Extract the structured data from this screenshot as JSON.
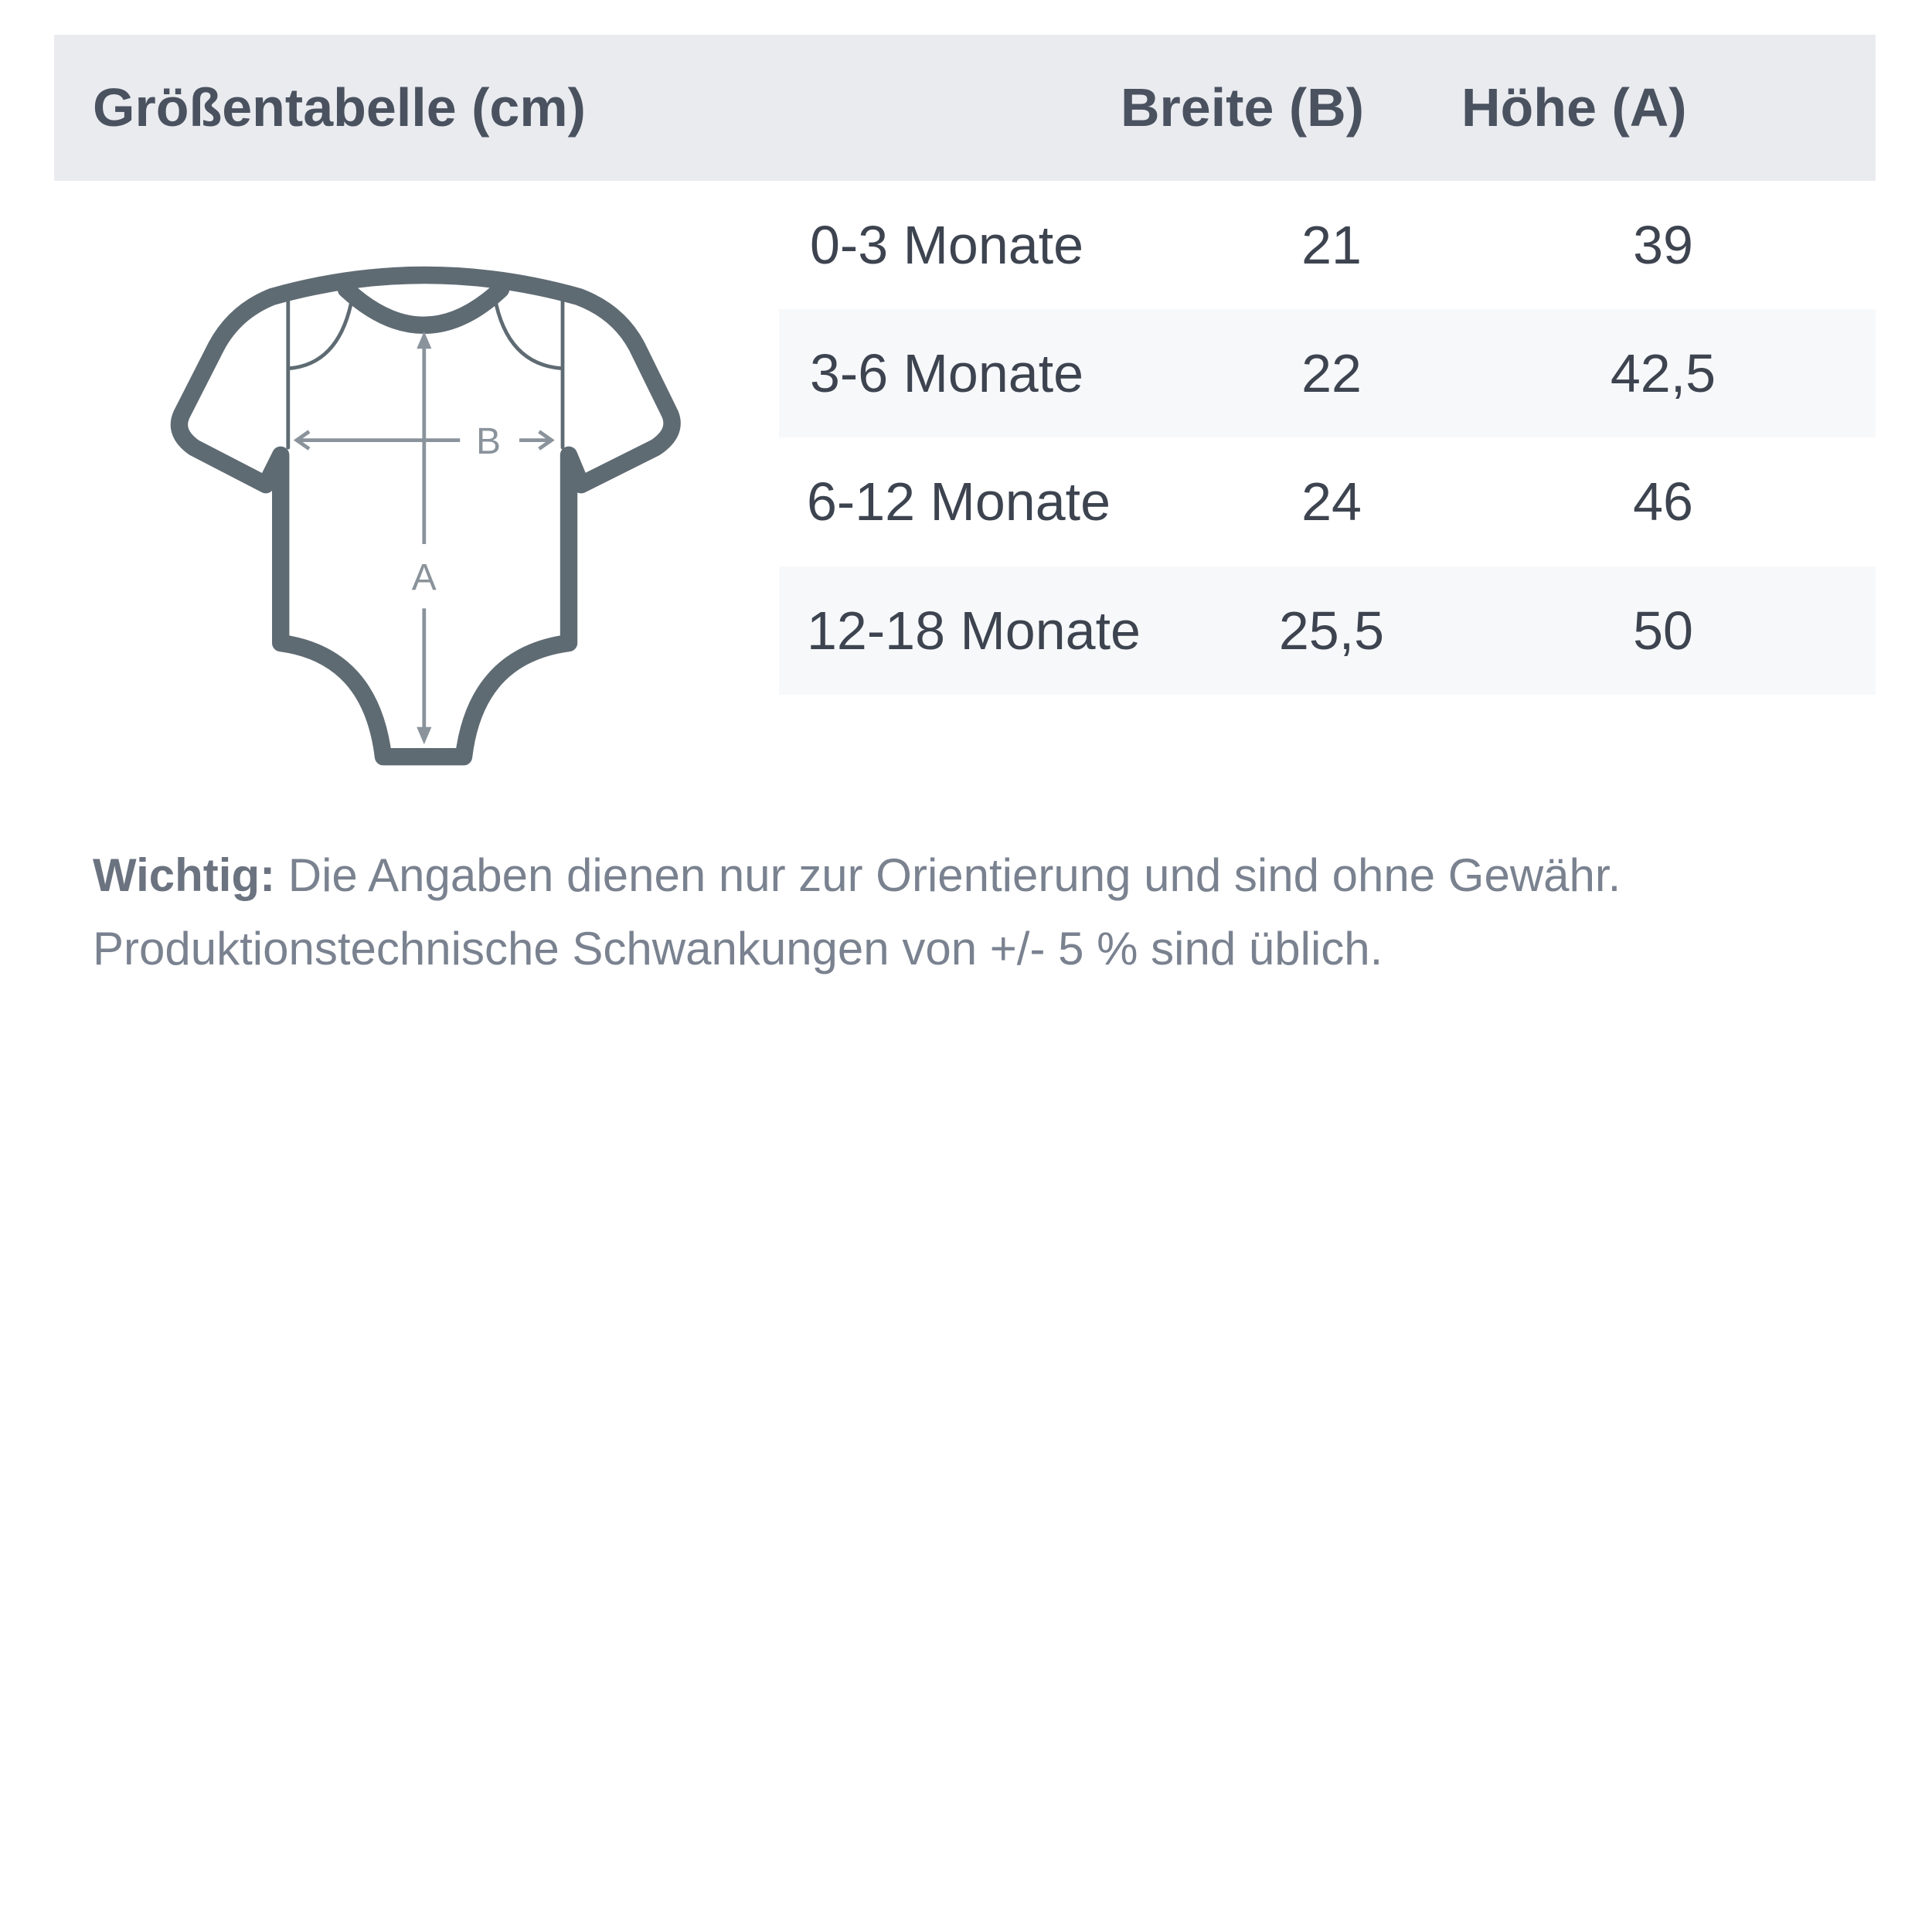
{
  "header": {
    "title": "Größentabelle (cm)",
    "col_width": "Breite (B)",
    "col_height": "Höhe (A)"
  },
  "rows": [
    {
      "size": "0-3 Monate",
      "width": "21",
      "height": "39"
    },
    {
      "size": "3-6 Monate",
      "width": "22",
      "height": "42,5"
    },
    {
      "size": "6-12 Monate",
      "width": "24",
      "height": "46"
    },
    {
      "size": "12-18 Monate",
      "width": "25,5",
      "height": "50"
    }
  ],
  "diagram": {
    "label_b": "B",
    "label_a": "A",
    "icon": "baby-bodysuit-icon"
  },
  "note": {
    "bold": "Wichtig:",
    "line1": " Die Angaben dienen nur zur Orientierung und sind ohne Gewähr.",
    "line2": "Produktionstechnische Schwankungen von +/- 5 % sind üblich."
  },
  "colors": {
    "header_bg": "#e9ebef",
    "stripe_bg": "#f7f8fa",
    "outline": "#5f6b73",
    "arrow": "#8a939b"
  }
}
